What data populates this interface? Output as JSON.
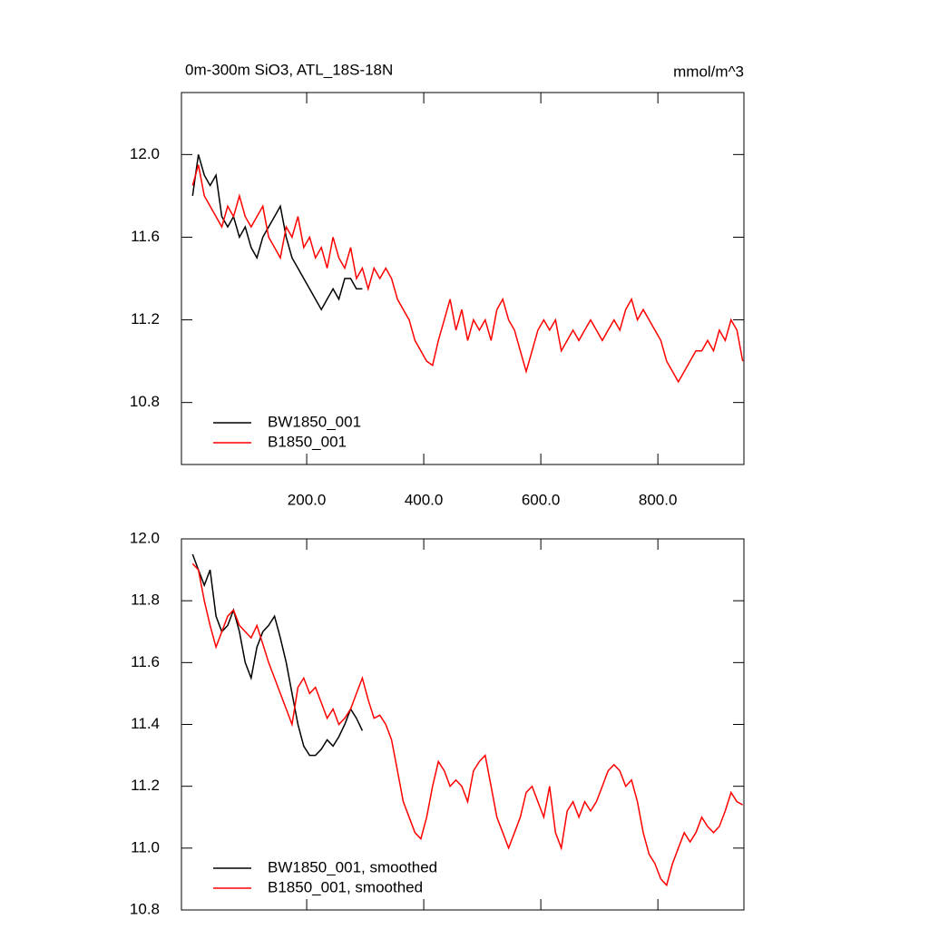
{
  "chart_data": [
    {
      "type": "line",
      "title": "0m-300m SiO3, ATL_18S-18N",
      "subtitle": "mmol/m^3",
      "xlim": [
        -14,
        947
      ],
      "ylim": [
        10.5,
        12.3
      ],
      "xticks": [
        {
          "value": 200,
          "label": "200.0"
        },
        {
          "value": 400,
          "label": "400.0"
        },
        {
          "value": 600,
          "label": "600.0"
        },
        {
          "value": 800,
          "label": "800.0"
        }
      ],
      "yticks": [
        {
          "value": 10.8,
          "label": "10.8"
        },
        {
          "value": 11.2,
          "label": "11.2"
        },
        {
          "value": 11.6,
          "label": "11.6"
        },
        {
          "value": 12,
          "label": "12.0"
        }
      ],
      "legend": "lower left",
      "series": [
        {
          "name": "BW1850_001",
          "color": "#000000",
          "x": [
            5,
            15,
            25,
            35,
            45,
            55,
            65,
            75,
            85,
            95,
            105,
            115,
            125,
            135,
            145,
            155,
            165,
            175,
            185,
            195,
            205,
            215,
            225,
            235,
            245,
            255,
            265,
            275,
            285,
            295
          ],
          "values": [
            11.8,
            12.0,
            11.9,
            11.85,
            11.9,
            11.7,
            11.65,
            11.7,
            11.6,
            11.65,
            11.55,
            11.5,
            11.6,
            11.65,
            11.7,
            11.75,
            11.6,
            11.5,
            11.45,
            11.4,
            11.35,
            11.3,
            11.25,
            11.3,
            11.35,
            11.3,
            11.4,
            11.4,
            11.35,
            11.35
          ]
        },
        {
          "name": "B1850_001",
          "color": "#ff0000",
          "x": [
            5,
            15,
            25,
            35,
            45,
            55,
            65,
            75,
            85,
            95,
            105,
            115,
            125,
            135,
            145,
            155,
            165,
            175,
            185,
            195,
            205,
            215,
            225,
            235,
            245,
            255,
            265,
            275,
            285,
            295,
            305,
            315,
            325,
            335,
            345,
            355,
            365,
            375,
            385,
            395,
            405,
            415,
            425,
            435,
            445,
            455,
            465,
            475,
            485,
            495,
            505,
            515,
            525,
            535,
            545,
            555,
            565,
            575,
            585,
            595,
            605,
            615,
            625,
            635,
            645,
            655,
            665,
            675,
            685,
            695,
            705,
            715,
            725,
            735,
            745,
            755,
            765,
            775,
            785,
            795,
            805,
            815,
            825,
            835,
            845,
            855,
            865,
            875,
            885,
            895,
            905,
            915,
            925,
            935,
            945
          ],
          "values": [
            11.85,
            11.95,
            11.8,
            11.75,
            11.7,
            11.65,
            11.75,
            11.7,
            11.8,
            11.7,
            11.65,
            11.7,
            11.75,
            11.6,
            11.55,
            11.5,
            11.65,
            11.6,
            11.7,
            11.55,
            11.6,
            11.5,
            11.55,
            11.45,
            11.6,
            11.5,
            11.45,
            11.55,
            11.4,
            11.45,
            11.35,
            11.45,
            11.4,
            11.45,
            11.4,
            11.3,
            11.25,
            11.2,
            11.1,
            11.05,
            11.0,
            10.98,
            11.1,
            11.2,
            11.3,
            11.15,
            11.25,
            11.1,
            11.2,
            11.15,
            11.2,
            11.1,
            11.25,
            11.3,
            11.2,
            11.15,
            11.05,
            10.95,
            11.05,
            11.15,
            11.2,
            11.15,
            11.2,
            11.05,
            11.1,
            11.15,
            11.1,
            11.15,
            11.2,
            11.15,
            11.1,
            11.15,
            11.2,
            11.15,
            11.25,
            11.3,
            11.2,
            11.25,
            11.2,
            11.15,
            11.1,
            11.0,
            10.95,
            10.9,
            10.95,
            11.0,
            11.05,
            11.05,
            11.1,
            11.05,
            11.15,
            11.1,
            11.2,
            11.15,
            11.0
          ]
        }
      ]
    },
    {
      "type": "line",
      "xlim": [
        -14,
        947
      ],
      "ylim": [
        10.8,
        12.0
      ],
      "xticks": [
        200,
        400,
        600,
        800
      ],
      "yticks": [
        10.8,
        {
          "value": 11,
          "label": "11.0"
        },
        11.2,
        11.4,
        11.6,
        11.8,
        {
          "value": 12,
          "label": "12.0"
        }
      ],
      "legend": "lower left",
      "series": [
        {
          "name": "BW1850_001, smoothed",
          "color": "#000000",
          "x": [
            5,
            15,
            25,
            35,
            45,
            55,
            65,
            75,
            85,
            95,
            105,
            115,
            125,
            135,
            145,
            155,
            165,
            175,
            185,
            195,
            205,
            215,
            225,
            235,
            245,
            255,
            265,
            275,
            285,
            295
          ],
          "values": [
            11.95,
            11.9,
            11.85,
            11.9,
            11.75,
            11.7,
            11.72,
            11.77,
            11.7,
            11.6,
            11.55,
            11.65,
            11.7,
            11.72,
            11.75,
            11.68,
            11.6,
            11.5,
            11.4,
            11.33,
            11.3,
            11.3,
            11.32,
            11.35,
            11.33,
            11.36,
            11.4,
            11.45,
            11.42,
            11.38
          ]
        },
        {
          "name": "B1850_001, smoothed",
          "color": "#ff0000",
          "x": [
            5,
            15,
            25,
            35,
            45,
            55,
            65,
            75,
            85,
            95,
            105,
            115,
            125,
            135,
            145,
            155,
            165,
            175,
            185,
            195,
            205,
            215,
            225,
            235,
            245,
            255,
            265,
            275,
            285,
            295,
            305,
            315,
            325,
            335,
            345,
            355,
            365,
            375,
            385,
            395,
            405,
            415,
            425,
            435,
            445,
            455,
            465,
            475,
            485,
            495,
            505,
            515,
            525,
            535,
            545,
            555,
            565,
            575,
            585,
            595,
            605,
            615,
            625,
            635,
            645,
            655,
            665,
            675,
            685,
            695,
            705,
            715,
            725,
            735,
            745,
            755,
            765,
            775,
            785,
            795,
            805,
            815,
            825,
            835,
            845,
            855,
            865,
            875,
            885,
            895,
            905,
            915,
            925,
            935,
            945
          ],
          "values": [
            11.92,
            11.9,
            11.8,
            11.72,
            11.65,
            11.7,
            11.75,
            11.77,
            11.72,
            11.7,
            11.68,
            11.72,
            11.66,
            11.6,
            11.55,
            11.5,
            11.45,
            11.4,
            11.52,
            11.55,
            11.5,
            11.52,
            11.47,
            11.42,
            11.45,
            11.4,
            11.42,
            11.45,
            11.5,
            11.55,
            11.48,
            11.42,
            11.43,
            11.4,
            11.35,
            11.25,
            11.15,
            11.1,
            11.05,
            11.03,
            11.1,
            11.2,
            11.28,
            11.25,
            11.2,
            11.22,
            11.2,
            11.15,
            11.25,
            11.28,
            11.3,
            11.2,
            11.1,
            11.05,
            11.0,
            11.05,
            11.1,
            11.18,
            11.2,
            11.15,
            11.1,
            11.2,
            11.05,
            11.0,
            11.12,
            11.15,
            11.1,
            11.15,
            11.12,
            11.15,
            11.2,
            11.25,
            11.27,
            11.25,
            11.2,
            11.22,
            11.15,
            11.05,
            10.98,
            10.95,
            10.9,
            10.88,
            10.95,
            11.0,
            11.05,
            11.02,
            11.05,
            11.1,
            11.07,
            11.05,
            11.07,
            11.12,
            11.18,
            11.15,
            11.14
          ]
        }
      ]
    }
  ]
}
